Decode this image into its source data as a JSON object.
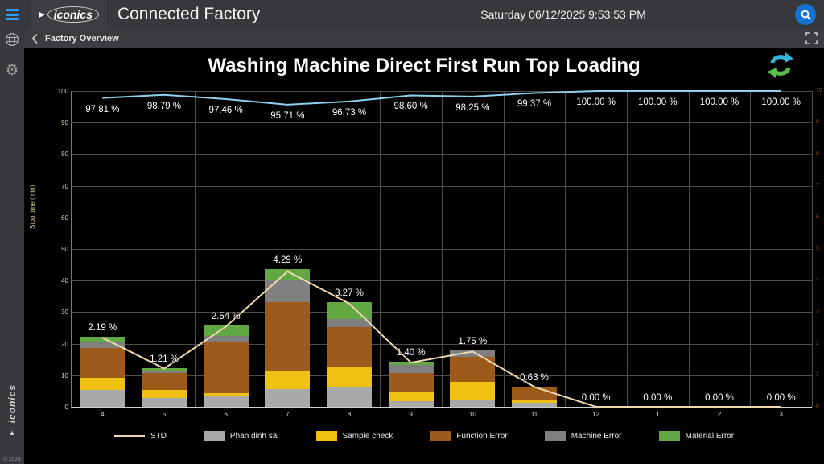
{
  "sidebar": {
    "copyright": "© 2025",
    "brand": "iconics"
  },
  "header": {
    "logo_text": "iconics",
    "logo_triangle": "▶",
    "title": "Connected Factory",
    "datetime": "Saturday 06/12/2025 9:53:53 PM"
  },
  "breadcrumb": {
    "label": "Factory Overview"
  },
  "icons": {
    "menu": "hamburger-icon",
    "globe": "globe-icon",
    "gear": "gear-icon",
    "search": "search-icon",
    "fullscreen": "fullscreen-icon",
    "back": "chevron-left-icon",
    "refresh": "refresh-icon"
  },
  "colors": {
    "hamburger_blue": "#2e9df0",
    "search_blue": "#1273d4",
    "refresh_teal": "#2fb4d8",
    "refresh_green": "#58c04a",
    "run_line": "#8fd2ef",
    "std_line": "#edd8b2"
  },
  "chart_data": {
    "type": "combo-stacked-bar-line",
    "title": "Washing Machine Direct First Run Top Loading",
    "categories": [
      "4",
      "5",
      "6",
      "7",
      "8",
      "9",
      "10",
      "11",
      "12",
      "1",
      "2",
      "3"
    ],
    "left_axis": {
      "title": "Stop time (min)",
      "min": 0,
      "max": 100,
      "step": 10
    },
    "right_axis": {
      "min": 0,
      "max": 10,
      "step": 1
    },
    "bar_series": [
      {
        "name": "Phan dinh sai",
        "color": "#a9a9a9",
        "values": [
          5.4,
          2.8,
          3.3,
          5.6,
          6.1,
          1.8,
          2.3,
          1.3,
          0,
          0,
          0,
          0
        ]
      },
      {
        "name": "Sample check",
        "color": "#eec113",
        "values": [
          3.8,
          2.6,
          1.0,
          5.6,
          6.4,
          3.0,
          5.6,
          0.7,
          0,
          0,
          0,
          0
        ]
      },
      {
        "name": "Function Error",
        "color": "#9c5a1b",
        "values": [
          9.4,
          5.3,
          16.1,
          22.0,
          12.8,
          5.9,
          7.9,
          4.4,
          0,
          0,
          0,
          0
        ]
      },
      {
        "name": "Machine Error",
        "color": "#7f7f7f",
        "values": [
          1.8,
          0.8,
          2.0,
          6.9,
          2.5,
          2.6,
          2.1,
          0,
          0,
          0,
          0,
          0
        ]
      },
      {
        "name": "Material Error",
        "color": "#61a843",
        "values": [
          1.7,
          0.7,
          3.4,
          3.5,
          5.4,
          1.0,
          0,
          0,
          0,
          0,
          0,
          0
        ]
      }
    ],
    "line_series": [
      {
        "id": "run-percent-line",
        "axis": "left",
        "color": "#8fd2ef",
        "values": [
          97.81,
          98.79,
          97.46,
          95.71,
          96.73,
          98.6,
          98.25,
          99.37,
          100.0,
          100.0,
          100.0,
          100.0
        ],
        "labels": [
          "97.81 %",
          "98.79 %",
          "97.46 %",
          "95.71 %",
          "96.73 %",
          "98.60 %",
          "98.25 %",
          "99.37 %",
          "100.00 %",
          "100.00 %",
          "100.00 %",
          "100.00 %"
        ]
      },
      {
        "id": "std-line",
        "name": "STD",
        "axis": "right",
        "color": "#edd8b2",
        "values": [
          2.19,
          1.21,
          2.54,
          4.29,
          3.27,
          1.4,
          1.75,
          0.63,
          0.0,
          0.0,
          0.0,
          0.0
        ],
        "labels": [
          "2.19 %",
          "1.21 %",
          "2.54 %",
          "4.29 %",
          "3.27 %",
          "1.40 %",
          "1.75 %",
          "0.63 %",
          "0.00 %",
          "0.00 %",
          "0.00 %",
          "0.00 %"
        ]
      }
    ],
    "legend": [
      {
        "label": "STD",
        "type": "line",
        "color": "#edd8b2"
      },
      {
        "label": "Phan dinh sai",
        "type": "box",
        "color": "#a9a9a9"
      },
      {
        "label": "Sample check",
        "type": "box",
        "color": "#eec113"
      },
      {
        "label": "Function Error",
        "type": "box",
        "color": "#9c5a1b"
      },
      {
        "label": "Machine Error",
        "type": "box",
        "color": "#7f7f7f"
      },
      {
        "label": "Material Error",
        "type": "box",
        "color": "#61a843"
      }
    ]
  }
}
